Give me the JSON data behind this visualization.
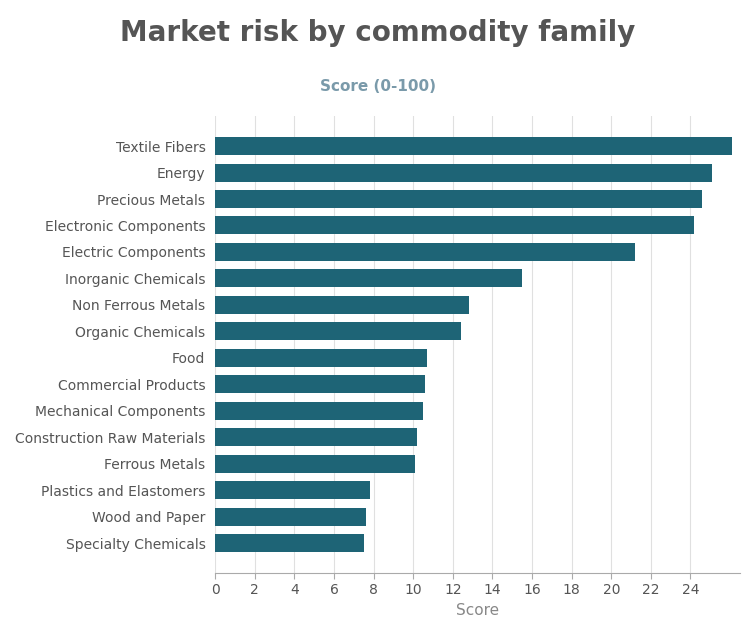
{
  "title": "Market risk by commodity family",
  "subtitle": "Score (0-100)",
  "xlabel": "Score",
  "categories": [
    "Specialty Chemicals",
    "Wood and Paper",
    "Plastics and Elastomers",
    "Ferrous Metals",
    "Construction Raw Materials",
    "Mechanical Components",
    "Commercial Products",
    "Food",
    "Organic Chemicals",
    "Non Ferrous Metals",
    "Inorganic Chemicals",
    "Electric Components",
    "Electronic Components",
    "Precious Metals",
    "Energy",
    "Textile Fibers"
  ],
  "values": [
    7.5,
    7.6,
    7.8,
    10.1,
    10.2,
    10.5,
    10.6,
    10.7,
    12.4,
    12.8,
    15.5,
    21.2,
    24.2,
    24.6,
    25.1,
    26.1
  ],
  "bar_color": "#1e6476",
  "title_color": "#555555",
  "subtitle_color": "#7a9aaa",
  "axis_label_color": "#888888",
  "tick_label_color": "#555555",
  "xlim": [
    0,
    26.5
  ],
  "xticks": [
    0,
    2,
    4,
    6,
    8,
    10,
    12,
    14,
    16,
    18,
    20,
    22,
    24
  ],
  "background_color": "#ffffff",
  "title_fontsize": 20,
  "subtitle_fontsize": 11,
  "xlabel_fontsize": 11,
  "ytick_fontsize": 10,
  "xtick_fontsize": 10,
  "bar_height": 0.68
}
